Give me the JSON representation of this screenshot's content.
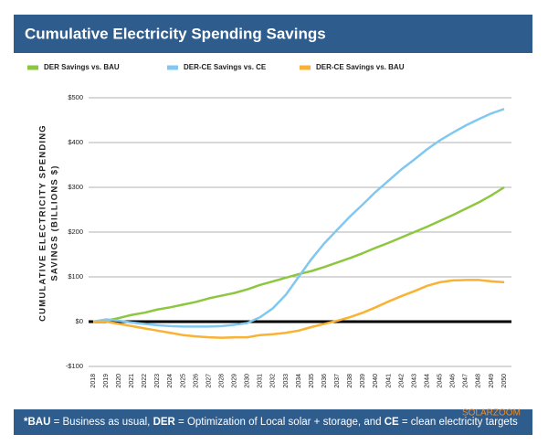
{
  "chart_data": {
    "type": "line",
    "title": "Cumulative Electricity Spending Savings",
    "ylabel": [
      "CUMULATIVE ELECTRICITY SPENDING",
      "SAVINGS (BILLIONS $)"
    ],
    "categories": [
      "2018",
      "2019",
      "2020",
      "2021",
      "2022",
      "2023",
      "2024",
      "2025",
      "2026",
      "2027",
      "2028",
      "2029",
      "2030",
      "2031",
      "2032",
      "2033",
      "2034",
      "2035",
      "2036",
      "2037",
      "2038",
      "2039",
      "2040",
      "2041",
      "2042",
      "2043",
      "2044",
      "2045",
      "2046",
      "2047",
      "2048",
      "2049",
      "2050"
    ],
    "series": [
      {
        "name": "DER Savings vs. BAU",
        "color": "#8dc63f",
        "values": [
          0,
          2,
          8,
          15,
          20,
          27,
          32,
          38,
          44,
          52,
          58,
          64,
          72,
          82,
          90,
          98,
          106,
          113,
          122,
          132,
          142,
          153,
          165,
          176,
          188,
          200,
          212,
          225,
          238,
          252,
          266,
          282,
          300
        ]
      },
      {
        "name": "DER-CE Savings vs. CE",
        "color": "#80c8f0",
        "values": [
          0,
          5,
          2,
          -2,
          -5,
          -8,
          -10,
          -11,
          -11,
          -11,
          -10,
          -7,
          -3,
          10,
          30,
          60,
          100,
          140,
          175,
          205,
          235,
          262,
          290,
          315,
          340,
          362,
          385,
          405,
          422,
          438,
          452,
          465,
          475
        ]
      },
      {
        "name": "DER-CE Savings vs. BAU",
        "color": "#f9b233",
        "values": [
          0,
          0,
          -5,
          -10,
          -15,
          -20,
          -25,
          -30,
          -33,
          -35,
          -36,
          -35,
          -35,
          -30,
          -28,
          -25,
          -20,
          -12,
          -5,
          2,
          10,
          20,
          32,
          45,
          57,
          68,
          80,
          88,
          92,
          93,
          93,
          90,
          88
        ]
      }
    ],
    "ylim": [
      -100,
      500
    ],
    "yticks": [
      {
        "value": -100,
        "label": "-$100"
      },
      {
        "value": 0,
        "label": "$0"
      },
      {
        "value": 100,
        "label": "$100"
      },
      {
        "value": 200,
        "label": "$200"
      },
      {
        "value": 300,
        "label": "$300"
      },
      {
        "value": 400,
        "label": "$400"
      },
      {
        "value": 500,
        "label": "$500"
      }
    ],
    "grid": true,
    "footnote": [
      {
        "text": "*BAU",
        "bold": true
      },
      {
        "text": " = Business as usual, ",
        "bold": false
      },
      {
        "text": "DER",
        "bold": true
      },
      {
        "text": " = Optimization of Local solar + storage, and ",
        "bold": false
      },
      {
        "text": "CE",
        "bold": true
      },
      {
        "text": " = clean electricity targets",
        "bold": false
      }
    ],
    "watermark": "SOLARZOOM"
  }
}
